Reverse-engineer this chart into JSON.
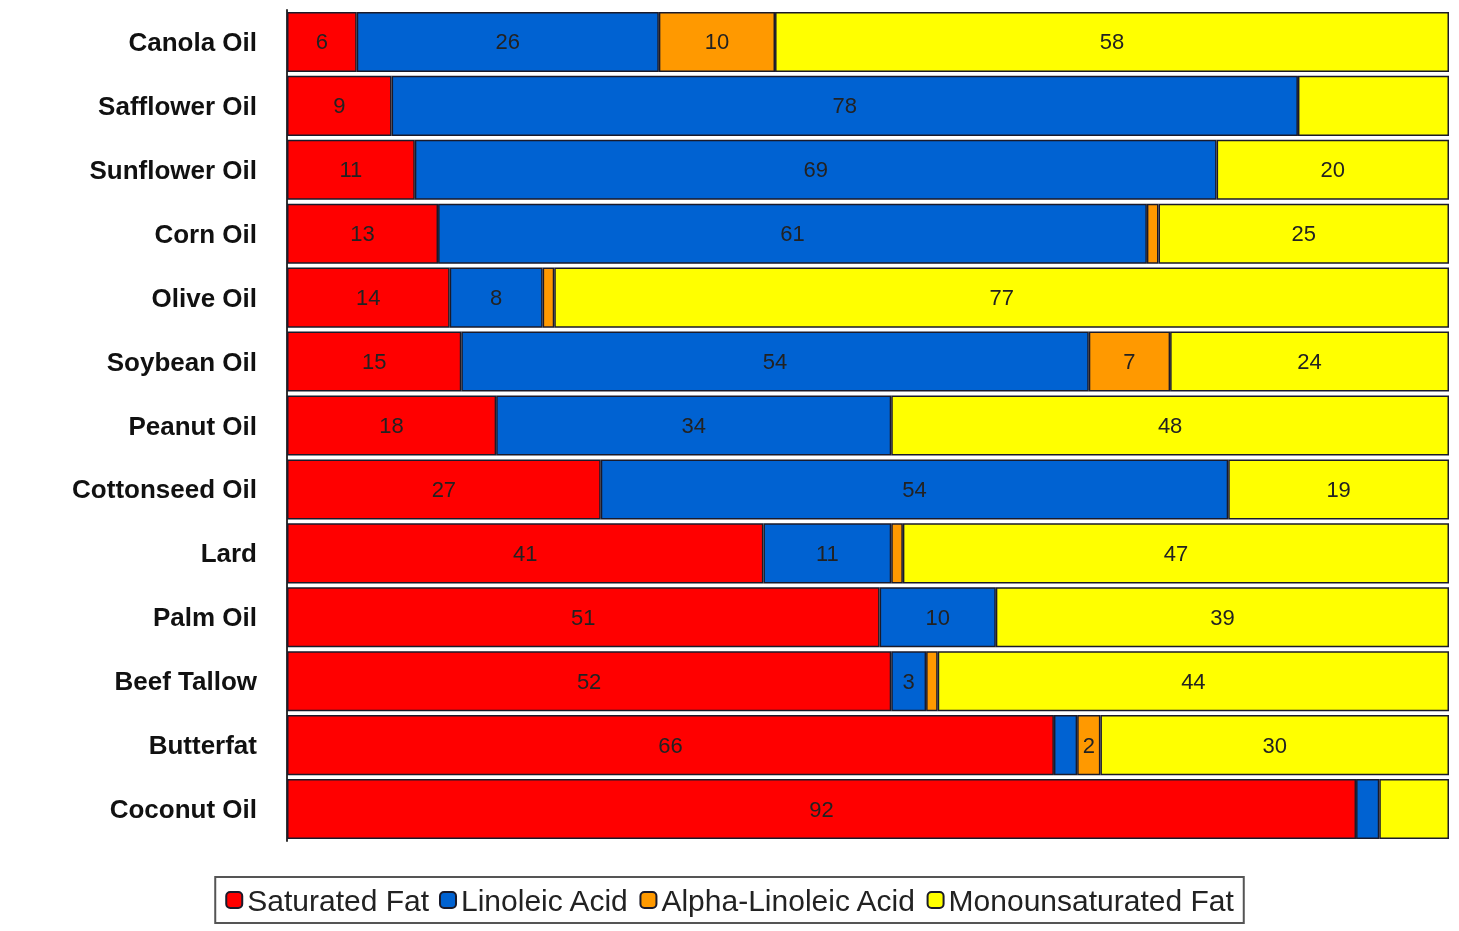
{
  "chart_data": {
    "type": "bar",
    "orientation": "horizontal",
    "stacked": true,
    "legend": "bottom",
    "tick_labels": "y",
    "xlim": [
      0,
      100
    ],
    "categories": [
      "Canola Oil",
      "Safflower Oil",
      "Sunflower Oil",
      "Corn Oil",
      "Olive Oil",
      "Soybean Oil",
      "Peanut Oil",
      "Cottonseed Oil",
      "Lard",
      "Palm Oil",
      "Beef Tallow",
      "Butterfat",
      "Coconut Oil"
    ],
    "series": [
      {
        "name": "Saturated Fat",
        "color": "#ff0000",
        "values": [
          6,
          9,
          11,
          13,
          14,
          15,
          18,
          27,
          41,
          51,
          52,
          66,
          92
        ],
        "value_labels": [
          "6",
          "9",
          "11",
          "13",
          "14",
          "15",
          "18",
          "27",
          "41",
          "51",
          "52",
          "66",
          "92"
        ]
      },
      {
        "name": "Linoleic Acid",
        "color": "#0062d2",
        "values": [
          26,
          78,
          69,
          61,
          8,
          54,
          34,
          54,
          11,
          10,
          3,
          2,
          2
        ],
        "value_labels": [
          "26",
          "78",
          "69",
          "61",
          "8",
          "54",
          "34",
          "54",
          "11",
          "10",
          "3",
          null,
          null
        ]
      },
      {
        "name": "Alpha-Linoleic Acid",
        "color": "#ff9900",
        "values": [
          10,
          null,
          null,
          1,
          1,
          7,
          null,
          null,
          1,
          null,
          1,
          2,
          null
        ],
        "value_labels": [
          "10",
          null,
          null,
          null,
          null,
          "7",
          null,
          null,
          null,
          null,
          null,
          "2",
          null
        ]
      },
      {
        "name": "Monounsaturated Fat",
        "color": "#ffff00",
        "values": [
          58,
          13,
          20,
          25,
          77,
          24,
          48,
          19,
          47,
          39,
          44,
          30,
          6
        ],
        "value_labels": [
          "58",
          null,
          "20",
          "25",
          "77",
          "24",
          "48",
          "19",
          "47",
          "39",
          "44",
          "30",
          null
        ]
      }
    ]
  }
}
